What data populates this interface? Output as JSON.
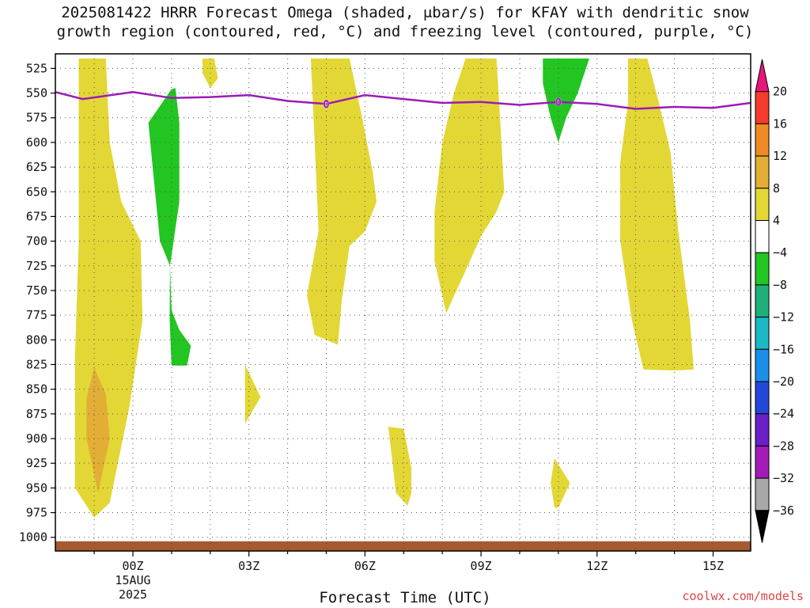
{
  "title": {
    "line1": "2025081422 HRRR Forecast Omega (shaded, μbar/s) for KFAY with dendritic snow",
    "line2": "growth region (contoured, red, °C) and freezing level (contoured, purple, °C)"
  },
  "chart_data": {
    "type": "time-height cross-section",
    "xlabel": "Forecast Time (UTC)",
    "ylabel": "",
    "x_ticks": [
      {
        "label": "00Z",
        "sub": [
          "15AUG",
          "2025"
        ]
      },
      {
        "label": "03Z"
      },
      {
        "label": "06Z"
      },
      {
        "label": "09Z"
      },
      {
        "label": "12Z"
      },
      {
        "label": "15Z"
      }
    ],
    "xlim_hours": [
      -2,
      16
    ],
    "y_ticks": [
      525,
      550,
      575,
      600,
      625,
      650,
      675,
      700,
      725,
      750,
      775,
      800,
      825,
      850,
      875,
      900,
      925,
      950,
      975,
      1000
    ],
    "ylim_hPa": [
      1010,
      515
    ],
    "grid": true,
    "colorbar": {
      "labels": [
        "20",
        "16",
        "12",
        "8",
        "4",
        "-4",
        "-8",
        "-12",
        "-16",
        "-20",
        "-24",
        "-28",
        "-32",
        "-36"
      ],
      "colors": [
        "#e8157a",
        "#f53a2e",
        "#f08a25",
        "#e2ae35",
        "#e3d735",
        "#ffffff",
        "#22c522",
        "#1fb07a",
        "#1cb8c6",
        "#1a8fe8",
        "#2347d8",
        "#6a1fc8",
        "#a41ab6",
        "#a8a8a8",
        "#000000"
      ]
    },
    "freezing_level": {
      "color": "#9a1bb8",
      "label": "0",
      "points": [
        [
          -2,
          549
        ],
        [
          -1.3,
          556
        ],
        [
          0,
          549
        ],
        [
          1,
          555
        ],
        [
          2,
          554
        ],
        [
          3,
          552
        ],
        [
          4,
          558
        ],
        [
          5,
          561
        ],
        [
          6,
          552
        ],
        [
          7,
          556
        ],
        [
          8,
          560
        ],
        [
          9,
          559
        ],
        [
          10,
          562
        ],
        [
          11,
          559
        ],
        [
          12,
          561
        ],
        [
          13,
          566
        ],
        [
          14,
          564
        ],
        [
          15,
          565
        ],
        [
          16,
          560
        ]
      ]
    },
    "shaded_regions": [
      {
        "class": "4 to 8",
        "color": "#e3d735",
        "points": [
          [
            -1.4,
            515
          ],
          [
            -0.7,
            515
          ],
          [
            -0.6,
            600
          ],
          [
            -0.3,
            660
          ],
          [
            0.2,
            700
          ],
          [
            0.25,
            780
          ],
          [
            -0.1,
            870
          ],
          [
            -0.6,
            965
          ],
          [
            -1.0,
            980
          ],
          [
            -1.5,
            950
          ],
          [
            -1.5,
            820
          ],
          [
            -1.4,
            700
          ],
          [
            -1.4,
            600
          ]
        ]
      },
      {
        "class": "8 to 12",
        "color": "#e2ae35",
        "points": [
          [
            -1.0,
            828
          ],
          [
            -0.7,
            855
          ],
          [
            -0.6,
            900
          ],
          [
            -0.9,
            955
          ],
          [
            -1.2,
            900
          ],
          [
            -1.2,
            860
          ]
        ]
      },
      {
        "class": "4 to 8",
        "color": "#e3d735",
        "points": [
          [
            1.8,
            515
          ],
          [
            2.1,
            515
          ],
          [
            2.2,
            535
          ],
          [
            2.0,
            545
          ],
          [
            1.8,
            530
          ]
        ]
      },
      {
        "class": "4 to 8",
        "color": "#e3d735",
        "points": [
          [
            2.9,
            825
          ],
          [
            3.3,
            858
          ],
          [
            2.9,
            885
          ],
          [
            2.9,
            850
          ]
        ]
      },
      {
        "class": "4 to 8",
        "color": "#e3d735",
        "points": [
          [
            4.6,
            515
          ],
          [
            5.6,
            515
          ],
          [
            5.9,
            570
          ],
          [
            6.2,
            630
          ],
          [
            6.3,
            660
          ],
          [
            6.0,
            690
          ],
          [
            5.6,
            705
          ],
          [
            5.4,
            760
          ],
          [
            5.3,
            805
          ],
          [
            4.7,
            795
          ],
          [
            4.5,
            755
          ],
          [
            4.8,
            690
          ],
          [
            4.7,
            600
          ]
        ]
      },
      {
        "class": "4 to 8",
        "color": "#e3d735",
        "points": [
          [
            6.6,
            888
          ],
          [
            7.0,
            890
          ],
          [
            7.2,
            930
          ],
          [
            7.2,
            955
          ],
          [
            7.1,
            968
          ],
          [
            6.8,
            955
          ],
          [
            6.7,
            920
          ]
        ]
      },
      {
        "class": "4 to 8",
        "color": "#e3d735",
        "points": [
          [
            8.6,
            515
          ],
          [
            9.4,
            515
          ],
          [
            9.5,
            580
          ],
          [
            9.6,
            650
          ],
          [
            9.4,
            670
          ],
          [
            9.0,
            695
          ],
          [
            8.6,
            730
          ],
          [
            8.1,
            773
          ],
          [
            7.8,
            720
          ],
          [
            7.8,
            670
          ],
          [
            8.0,
            600
          ],
          [
            8.3,
            550
          ]
        ]
      },
      {
        "class": "4 to 8",
        "color": "#e3d735",
        "points": [
          [
            10.9,
            920
          ],
          [
            11.3,
            945
          ],
          [
            11.0,
            970
          ],
          [
            10.9,
            970
          ],
          [
            10.8,
            945
          ]
        ]
      },
      {
        "class": "4 to 8",
        "color": "#e3d735",
        "points": [
          [
            12.8,
            515
          ],
          [
            13.3,
            515
          ],
          [
            13.6,
            560
          ],
          [
            13.9,
            610
          ],
          [
            14.1,
            690
          ],
          [
            14.4,
            780
          ],
          [
            14.5,
            830
          ],
          [
            14.0,
            831
          ],
          [
            13.2,
            830
          ],
          [
            12.9,
            780
          ],
          [
            12.6,
            700
          ],
          [
            12.6,
            620
          ],
          [
            12.8,
            560
          ]
        ]
      },
      {
        "class": "-4 to -8",
        "color": "#22c522",
        "points": [
          [
            1.0,
            546
          ],
          [
            0.4,
            580
          ],
          [
            0.5,
            620
          ],
          [
            0.7,
            700
          ],
          [
            0.96,
            725
          ],
          [
            1.2,
            660
          ],
          [
            1.2,
            580
          ],
          [
            1.1,
            545
          ]
        ]
      },
      {
        "class": "-4 to -8",
        "color": "#22c522",
        "points": [
          [
            0.96,
            725
          ],
          [
            1.0,
            770
          ],
          [
            1.2,
            790
          ],
          [
            1.5,
            806
          ],
          [
            1.4,
            826
          ],
          [
            1.0,
            826
          ],
          [
            0.95,
            780
          ]
        ]
      },
      {
        "class": "-4 to -8",
        "color": "#22c522",
        "points": [
          [
            10.6,
            515
          ],
          [
            11.8,
            515
          ],
          [
            11.5,
            550
          ],
          [
            11.2,
            575
          ],
          [
            11.0,
            600
          ],
          [
            10.8,
            575
          ],
          [
            10.6,
            540
          ]
        ]
      }
    ],
    "ground": {
      "color": "#a55a30",
      "pressure_hPa": 1004
    }
  },
  "credit": "coolwx.com/models"
}
